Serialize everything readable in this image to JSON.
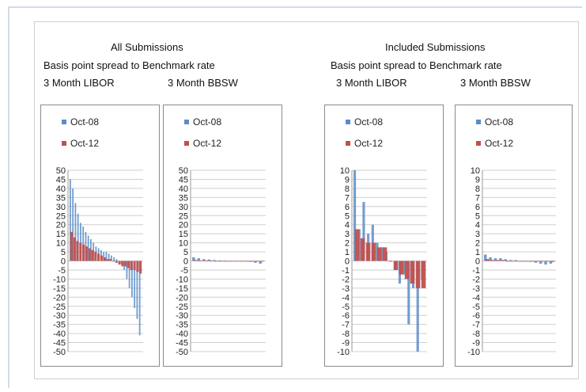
{
  "headers": {
    "left_title": "All Submissions",
    "left_subtitle": "Basis point spread to Benchmark rate",
    "left_label_a": "3 Month LIBOR",
    "left_label_b": "3 Month BBSW",
    "right_title": "Included Submissions",
    "right_subtitle": "Basis point  spread to Benchmark rate",
    "right_label_a": "3 Month LIBOR",
    "right_label_b": "3 Month BBSW"
  },
  "colors": {
    "oct08": "#5b8cc8",
    "oct12": "#c0504d"
  },
  "chart_data": [
    {
      "type": "bar",
      "panel": "All Submissions - 3 Month LIBOR",
      "ylim": [
        -50,
        50
      ],
      "yticks": [
        "50",
        "45",
        "40",
        "35",
        "30",
        "25",
        "20",
        "15",
        "10",
        "5",
        "0",
        "-5",
        "-10",
        "-15",
        "-20",
        "-25",
        "-30",
        "-35",
        "-40",
        "-45",
        "-50"
      ],
      "grid": true,
      "legend": "top-left",
      "series": [
        {
          "name": "Oct-08",
          "values": [
            45,
            40,
            32,
            26,
            21,
            19,
            16,
            14,
            12,
            10,
            8,
            7,
            6,
            5,
            5,
            4,
            3,
            2,
            1,
            0,
            -2,
            -5,
            -10,
            -15,
            -20,
            -26,
            -32,
            -41
          ]
        },
        {
          "name": "Oct-12",
          "values": [
            16,
            13,
            11,
            10,
            9,
            8,
            7,
            6,
            5,
            4,
            3,
            2,
            1,
            1,
            0,
            -1,
            -2,
            -3,
            -3,
            -4,
            -5,
            -5,
            -6,
            -7
          ]
        }
      ]
    },
    {
      "type": "bar",
      "panel": "All Submissions - 3 Month BBSW",
      "ylim": [
        -50,
        50
      ],
      "yticks": [
        "50",
        "45",
        "40",
        "35",
        "30",
        "25",
        "20",
        "15",
        "10",
        "5",
        "0",
        "-5",
        "-10",
        "-15",
        "-20",
        "-25",
        "-30",
        "-35",
        "-40",
        "-45",
        "-50"
      ],
      "grid": true,
      "legend": "top-left",
      "series": [
        {
          "name": "Oct-08",
          "values": [
            2,
            1.5,
            1,
            0.8,
            0.5,
            0.3,
            0.2,
            0,
            0,
            0,
            -0.2,
            -0.5,
            -1,
            -1.5
          ]
        },
        {
          "name": "Oct-12",
          "values": [
            0.5,
            0.3,
            0.2,
            0.1,
            0,
            0,
            0,
            0,
            0,
            0,
            0,
            0,
            0,
            -0.2
          ]
        }
      ]
    },
    {
      "type": "bar",
      "panel": "Included Submissions - 3 Month LIBOR",
      "ylim": [
        -10,
        10
      ],
      "yticks": [
        "10",
        "9",
        "8",
        "7",
        "6",
        "5",
        "4",
        "3",
        "2",
        "1",
        "0",
        "-1",
        "-2",
        "-3",
        "-4",
        "-5",
        "-6",
        "-7",
        "-8",
        "-9",
        "-10"
      ],
      "grid": true,
      "legend": "top-left",
      "series": [
        {
          "name": "Oct-08",
          "values": [
            10,
            3.5,
            6.5,
            3,
            4,
            2,
            1.5,
            1,
            0,
            -1,
            -2.5,
            -1.5,
            -7,
            -3,
            -10,
            -2
          ]
        },
        {
          "name": "Oct-12",
          "values": [
            3.5,
            2.5,
            2,
            2,
            1.5,
            1.5,
            0,
            -1,
            -1.5,
            -2,
            -2.5,
            -3,
            -3
          ]
        }
      ]
    },
    {
      "type": "bar",
      "panel": "Included Submissions - 3 Month BBSW",
      "ylim": [
        -10,
        10
      ],
      "yticks": [
        "10",
        "9",
        "8",
        "7",
        "6",
        "5",
        "4",
        "3",
        "2",
        "1",
        "0",
        "-1",
        "-2",
        "-3",
        "-4",
        "-5",
        "-6",
        "-7",
        "-8",
        "-9",
        "-10"
      ],
      "grid": true,
      "legend": "top-left",
      "series": [
        {
          "name": "Oct-08",
          "values": [
            0.7,
            0.4,
            0.3,
            0.3,
            0.2,
            0.1,
            0.1,
            0,
            0,
            -0.1,
            -0.2,
            -0.3,
            -0.4,
            -0.3
          ]
        },
        {
          "name": "Oct-12",
          "values": [
            0.2,
            0.1,
            0.1,
            0.1,
            0,
            0,
            0,
            0,
            0,
            0,
            0,
            0,
            0,
            -0.1
          ]
        }
      ]
    }
  ]
}
